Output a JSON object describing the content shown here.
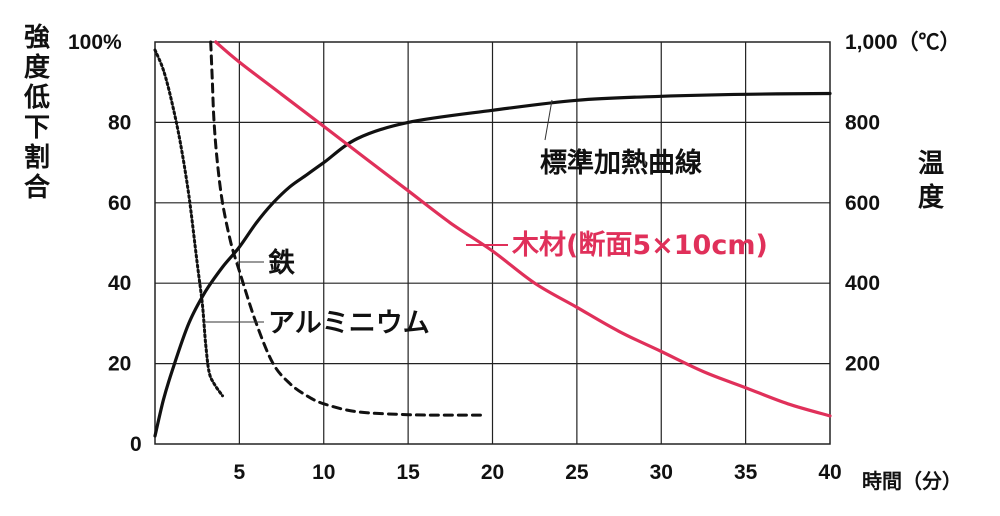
{
  "chart_data": {
    "type": "line",
    "x_axis": {
      "label": "時間（分）",
      "range": [
        0,
        40
      ],
      "ticks": [
        0,
        5,
        10,
        15,
        20,
        25,
        30,
        35,
        40
      ],
      "tick_labels": [
        "5",
        "10",
        "15",
        "20",
        "25",
        "30",
        "35",
        "40"
      ]
    },
    "y_left": {
      "label_chars": [
        "強",
        "度",
        "低",
        "下",
        "割",
        "合"
      ],
      "range": [
        0,
        100
      ],
      "ticks": [
        0,
        20,
        40,
        60,
        80,
        100
      ],
      "tick_labels": [
        "0",
        "20",
        "40",
        "60",
        "80",
        "100%"
      ]
    },
    "y_right": {
      "label_chars": [
        "温",
        "度"
      ],
      "range": [
        0,
        1000
      ],
      "ticks": [
        200,
        400,
        600,
        800,
        1000
      ],
      "tick_labels": [
        "200",
        "400",
        "600",
        "800",
        "1,000（℃）"
      ]
    },
    "grid": true,
    "series": [
      {
        "name": "標準加熱曲線",
        "axis": "right",
        "style": "solid",
        "color": "#111111",
        "x": [
          0,
          0.5,
          1,
          2,
          3,
          4,
          5,
          6,
          7,
          8,
          9,
          10,
          12,
          15,
          20,
          25,
          30,
          35,
          40
        ],
        "y": [
          20,
          110,
          180,
          300,
          380,
          440,
          490,
          550,
          600,
          640,
          670,
          700,
          760,
          800,
          830,
          855,
          865,
          870,
          872
        ]
      },
      {
        "name": "木材(断面5×10cm)",
        "axis": "left",
        "style": "solid",
        "color": "#e0305a",
        "x": [
          3.6,
          5,
          7.5,
          10,
          12.5,
          15,
          17.5,
          20,
          22.5,
          25,
          27.5,
          30,
          32.5,
          35,
          37.5,
          40
        ],
        "y": [
          100,
          95,
          87,
          79,
          71,
          63,
          55,
          48,
          40,
          34,
          28,
          23,
          18,
          14,
          10,
          7
        ]
      },
      {
        "name": "鉄",
        "axis": "left",
        "style": "dashed",
        "color": "#111111",
        "x": [
          3.3,
          3.4,
          3.5,
          3.7,
          4,
          4.5,
          5,
          6,
          7,
          8,
          9,
          10,
          12,
          15,
          17,
          19.5
        ],
        "y": [
          100,
          90,
          80,
          70,
          60,
          50,
          43,
          30,
          20,
          15,
          12,
          10,
          8,
          7.3,
          7.2,
          7.2
        ]
      },
      {
        "name": "アルミニウム",
        "axis": "left",
        "style": "dotted",
        "color": "#111111",
        "x": [
          0,
          0.5,
          1,
          1.5,
          2,
          2.5,
          2.8,
          3,
          3.2,
          3.5,
          4
        ],
        "y": [
          98,
          93,
          85,
          75,
          62,
          45,
          35,
          25,
          18,
          15,
          12
        ]
      }
    ],
    "annotations": [
      {
        "text": "標準加熱曲線",
        "series": "標準加熱曲線"
      },
      {
        "text": "木材(断面5×10cm)",
        "series": "木材(断面5×10cm)"
      },
      {
        "text": "鉄",
        "series": "鉄"
      },
      {
        "text": "アルミニウム",
        "series": "アルミニウム"
      }
    ]
  }
}
